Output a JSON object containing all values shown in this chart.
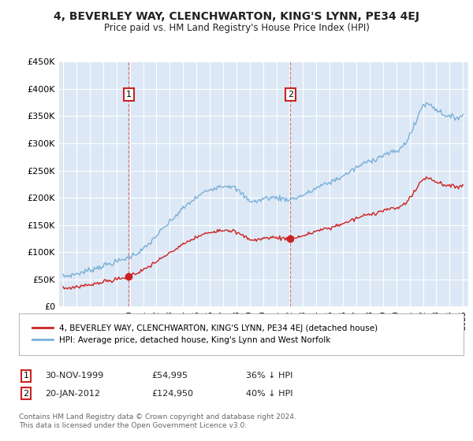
{
  "title": "4, BEVERLEY WAY, CLENCHWARTON, KING'S LYNN, PE34 4EJ",
  "subtitle": "Price paid vs. HM Land Registry's House Price Index (HPI)",
  "background_color": "#ffffff",
  "plot_bg_color": "#dce8f5",
  "grid_color": "#ffffff",
  "ylim": [
    0,
    450000
  ],
  "yticks": [
    0,
    50000,
    100000,
    150000,
    200000,
    250000,
    300000,
    350000,
    400000,
    450000
  ],
  "ytick_labels": [
    "£0",
    "£50K",
    "£100K",
    "£150K",
    "£200K",
    "£250K",
    "£300K",
    "£350K",
    "£400K",
    "£450K"
  ],
  "sale1_price": 54995,
  "sale1_year": 1999.92,
  "sale1_label": "1",
  "sale2_price": 124950,
  "sale2_year": 2012.05,
  "sale2_label": "2",
  "red_line_color": "#cc2222",
  "blue_line_color": "#7ab0d8",
  "legend_label_red": "4, BEVERLEY WAY, CLENCHWARTON, KING'S LYNN, PE34 4EJ (detached house)",
  "legend_label_blue": "HPI: Average price, detached house, King's Lynn and West Norfolk",
  "footer_text": "Contains HM Land Registry data © Crown copyright and database right 2024.\nThis data is licensed under the Open Government Licence v3.0."
}
